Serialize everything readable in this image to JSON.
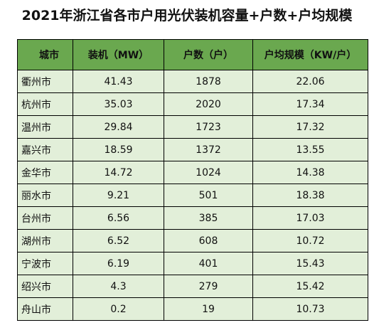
{
  "title": "2021年浙江省各市户用光伏装机容量+户数+户均规模",
  "table": {
    "headers": [
      "城市",
      "装机（MW）",
      "户数（户）",
      "户均规模（KW/户）"
    ],
    "rows": [
      [
        "衢州市",
        "41.43",
        "1878",
        "22.06"
      ],
      [
        "杭州市",
        "35.03",
        "2020",
        "17.34"
      ],
      [
        "温州市",
        "29.84",
        "1723",
        "17.32"
      ],
      [
        "嘉兴市",
        "18.59",
        "1372",
        "13.55"
      ],
      [
        "金华市",
        "14.72",
        "1024",
        "14.38"
      ],
      [
        "丽水市",
        "9.21",
        "501",
        "18.38"
      ],
      [
        "台州市",
        "6.56",
        "385",
        "17.03"
      ],
      [
        "湖州市",
        "6.52",
        "608",
        "10.72"
      ],
      [
        "宁波市",
        "6.19",
        "401",
        "15.43"
      ],
      [
        "绍兴市",
        "4.3",
        "279",
        "15.42"
      ],
      [
        "舟山市",
        "0.2",
        "19",
        "10.73"
      ]
    ]
  },
  "colors": {
    "header_bg": "#6aa84f",
    "row_bg": "#e2efd9",
    "border": "#000000"
  }
}
